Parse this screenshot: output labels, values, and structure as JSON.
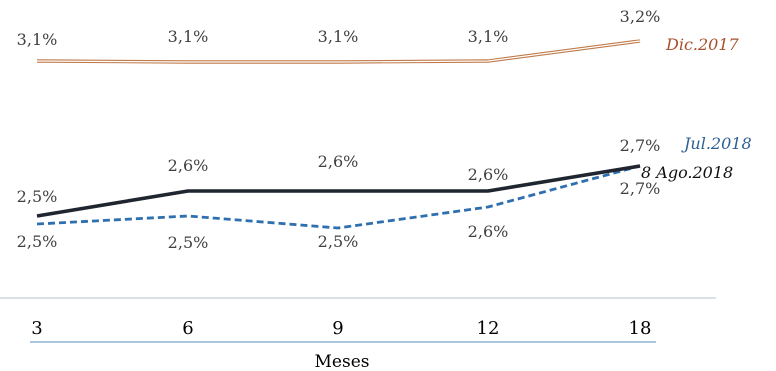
{
  "chart_data": {
    "type": "line",
    "x": [
      3,
      6,
      9,
      12,
      18
    ],
    "xlabel": "Meses",
    "tick_labels": [
      "3",
      "6",
      "9",
      "12",
      "18"
    ],
    "ylim": [
      2.0,
      3.4
    ],
    "grid": false,
    "legend": "inline labels at right end of each line",
    "series": [
      {
        "name": "Dic.2017",
        "values": [
          3.1,
          3.1,
          3.1,
          3.1,
          3.2
        ],
        "labels": [
          "3,1%",
          "3,1%",
          "3,1%",
          "3,1%",
          "3,2%"
        ],
        "color": "#c07a4a",
        "style": "double-solid"
      },
      {
        "name": "Jul.2018",
        "values": [
          2.5,
          2.5,
          2.5,
          2.6,
          2.7
        ],
        "labels": [
          "2,5%",
          "2,5%",
          "2,5%",
          "2,6%",
          "2,7%"
        ],
        "color": "#2e6fb0",
        "style": "dashed"
      },
      {
        "name": "8 Ago.2018",
        "values": [
          2.5,
          2.6,
          2.6,
          2.6,
          2.7
        ],
        "labels": [
          "2,5%",
          "2,6%",
          "2,6%",
          "2,6%",
          "2,7%"
        ],
        "color": "#1f2630",
        "style": "solid"
      }
    ]
  }
}
